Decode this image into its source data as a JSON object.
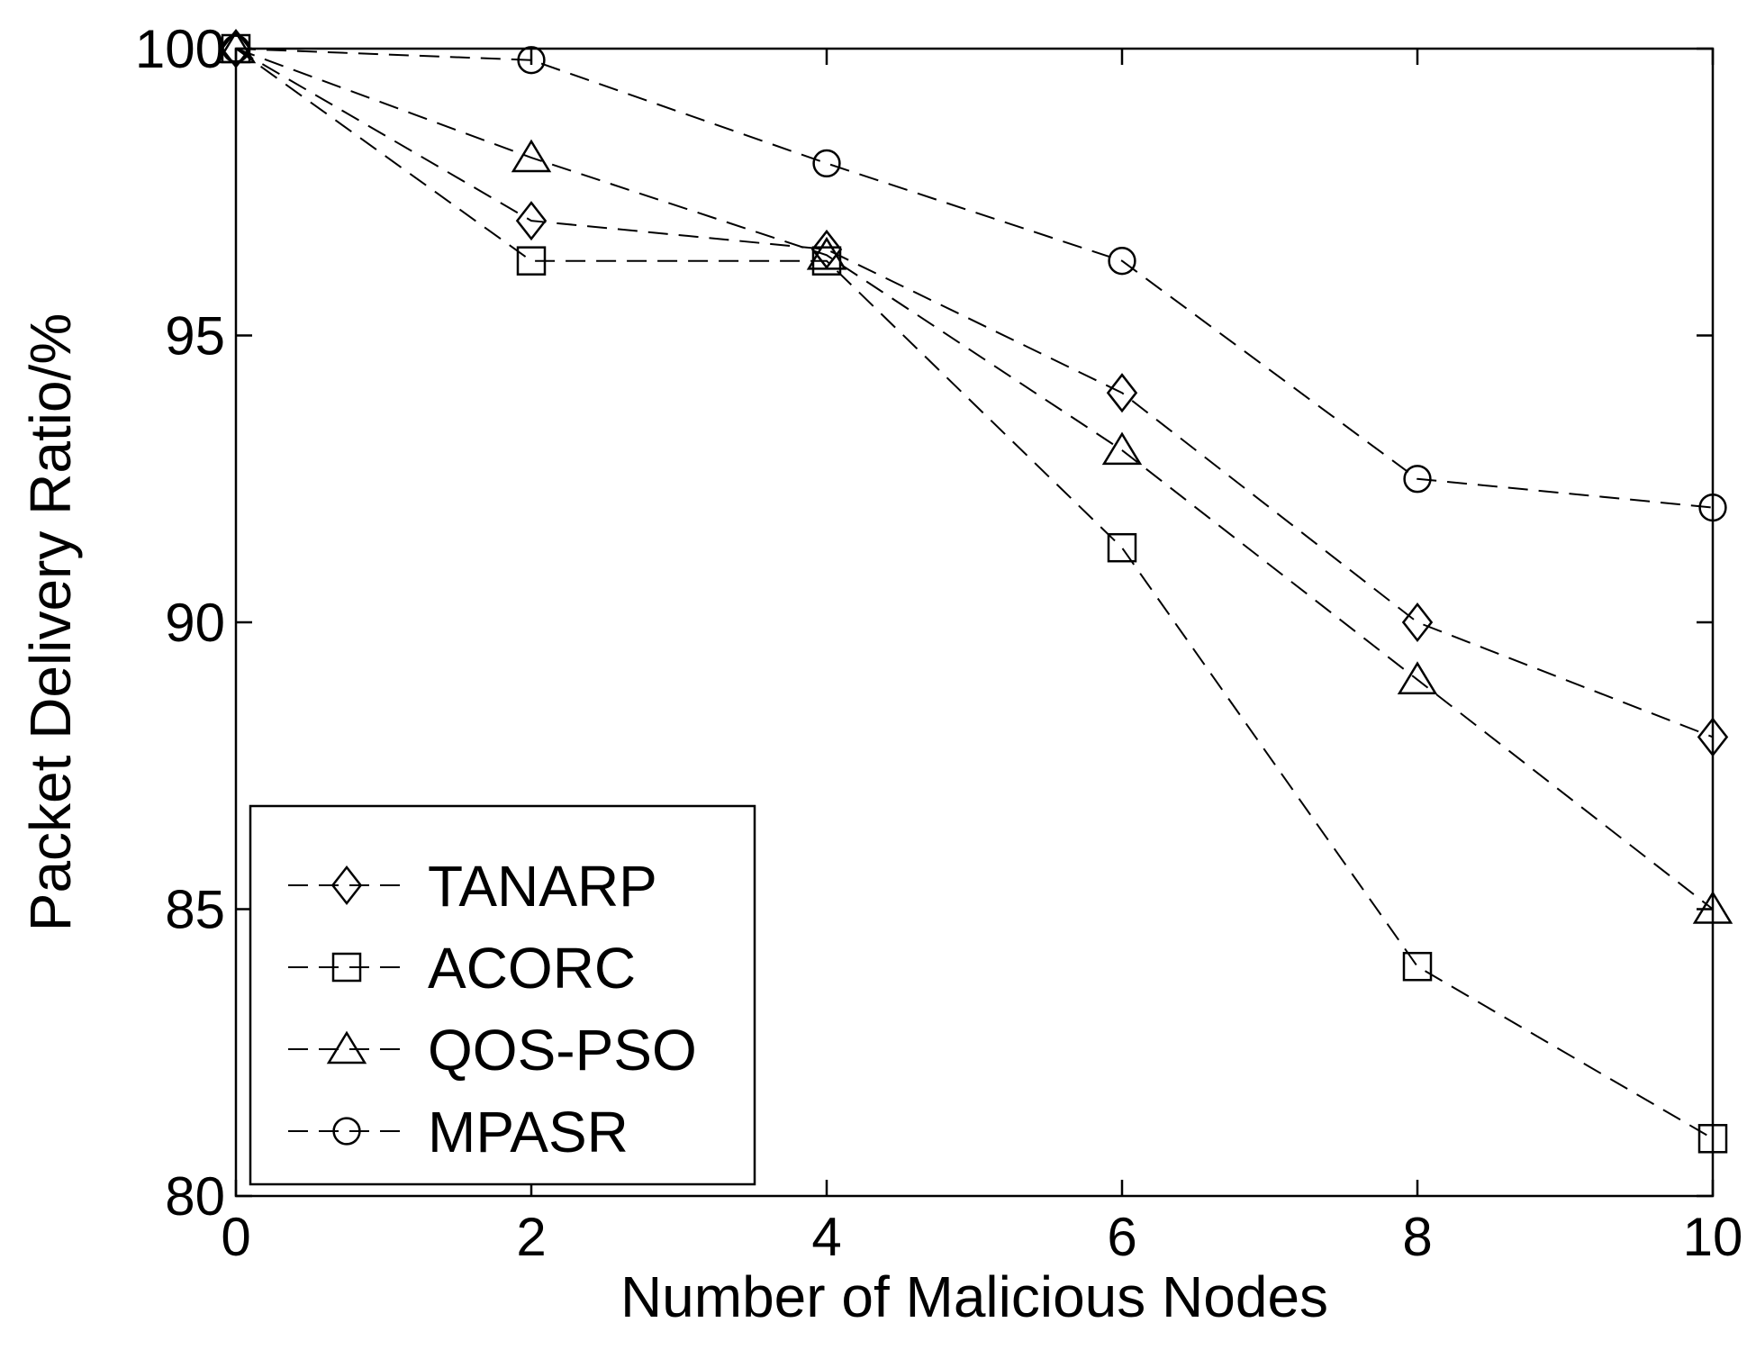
{
  "chart_data": {
    "type": "line",
    "title": "",
    "xlabel": "Number of Malicious Nodes",
    "ylabel": "Packet Delivery Ratio/%",
    "x": [
      0,
      2,
      4,
      6,
      8,
      10
    ],
    "xlim": [
      0,
      10
    ],
    "ylim": [
      80,
      100
    ],
    "xticks": [
      "0",
      "2",
      "4",
      "6",
      "8",
      "10"
    ],
    "yticks": [
      "80",
      "85",
      "90",
      "95",
      "100"
    ],
    "grid": false,
    "legend_position": "bottom-left",
    "series": [
      {
        "name": "TANARP",
        "marker": "diamond",
        "values": [
          100,
          97,
          96.5,
          94,
          90,
          88
        ]
      },
      {
        "name": "ACORC",
        "marker": "square",
        "values": [
          100,
          96.3,
          96.3,
          91.3,
          84,
          81
        ]
      },
      {
        "name": "QOS-PSO",
        "marker": "triangle",
        "values": [
          100,
          98.1,
          96.4,
          93,
          89,
          85
        ]
      },
      {
        "name": "MPASR",
        "marker": "circle",
        "values": [
          100,
          99.8,
          98,
          96.3,
          92.5,
          92
        ]
      }
    ],
    "colors": {
      "line": "#000000",
      "background": "#ffffff"
    }
  }
}
